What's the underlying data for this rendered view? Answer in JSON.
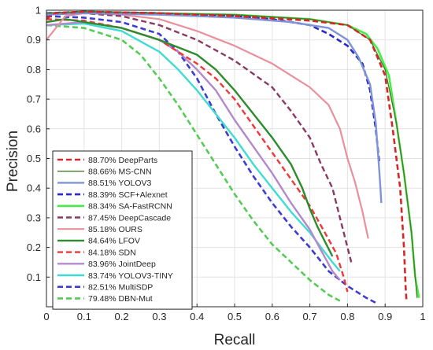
{
  "chart_data": {
    "type": "line",
    "xlabel": "Recall",
    "ylabel": "Precision",
    "xlim": [
      0,
      1
    ],
    "ylim": [
      0,
      1
    ],
    "xticks": [
      "0",
      "0.1",
      "0.2",
      "0.3",
      "0.4",
      "0.5",
      "0.6",
      "0.7",
      "0.8",
      "0.9",
      "1"
    ],
    "yticks": [
      "0.1",
      "0.2",
      "0.3",
      "0.4",
      "0.5",
      "0.6",
      "0.7",
      "0.8",
      "0.9",
      "1"
    ],
    "grid": true,
    "legend_position": "bottom-left",
    "series": [
      {
        "name": "88.70% DeepParts",
        "color": "#d62728",
        "dash": true,
        "width": 2.6,
        "points": [
          [
            0.0,
            0.97
          ],
          [
            0.02,
            0.99
          ],
          [
            0.1,
            0.995
          ],
          [
            0.3,
            0.99
          ],
          [
            0.5,
            0.98
          ],
          [
            0.7,
            0.965
          ],
          [
            0.8,
            0.95
          ],
          [
            0.86,
            0.9
          ],
          [
            0.9,
            0.78
          ],
          [
            0.92,
            0.6
          ],
          [
            0.94,
            0.4
          ],
          [
            0.95,
            0.2
          ],
          [
            0.955,
            0.05
          ],
          [
            0.957,
            0.02
          ]
        ]
      },
      {
        "name": "88.66% MS-CNN",
        "color": "#4a7a2a",
        "dash": false,
        "width": 1.4,
        "points": [
          [
            0.0,
            0.99
          ],
          [
            0.1,
            0.995
          ],
          [
            0.3,
            0.99
          ],
          [
            0.5,
            0.985
          ],
          [
            0.7,
            0.97
          ],
          [
            0.8,
            0.95
          ],
          [
            0.86,
            0.9
          ],
          [
            0.9,
            0.8
          ],
          [
            0.93,
            0.62
          ],
          [
            0.95,
            0.45
          ],
          [
            0.97,
            0.25
          ],
          [
            0.98,
            0.1
          ],
          [
            0.985,
            0.03
          ]
        ]
      },
      {
        "name": "88.51% YOLOV3",
        "color": "#7f94d8",
        "dash": false,
        "width": 2.4,
        "points": [
          [
            0.0,
            0.985
          ],
          [
            0.1,
            0.99
          ],
          [
            0.3,
            0.985
          ],
          [
            0.5,
            0.975
          ],
          [
            0.65,
            0.96
          ],
          [
            0.75,
            0.94
          ],
          [
            0.8,
            0.9
          ],
          [
            0.83,
            0.84
          ],
          [
            0.86,
            0.75
          ],
          [
            0.875,
            0.62
          ],
          [
            0.885,
            0.45
          ],
          [
            0.89,
            0.35
          ]
        ]
      },
      {
        "name": "88.39% SCF+Alexnet",
        "color": "#2a2ac8",
        "dash": true,
        "width": 2.6,
        "points": [
          [
            0.0,
            0.99
          ],
          [
            0.1,
            0.995
          ],
          [
            0.3,
            0.99
          ],
          [
            0.5,
            0.98
          ],
          [
            0.6,
            0.97
          ],
          [
            0.7,
            0.95
          ],
          [
            0.75,
            0.92
          ],
          [
            0.8,
            0.88
          ],
          [
            0.84,
            0.82
          ],
          [
            0.86,
            0.73
          ],
          [
            0.875,
            0.6
          ],
          [
            0.885,
            0.48
          ]
        ]
      },
      {
        "name": "88.34% SA-FastRCNN",
        "color": "#44ee44",
        "dash": false,
        "width": 2.6,
        "points": [
          [
            0.0,
            0.99
          ],
          [
            0.1,
            0.995
          ],
          [
            0.3,
            0.99
          ],
          [
            0.5,
            0.985
          ],
          [
            0.7,
            0.97
          ],
          [
            0.8,
            0.95
          ],
          [
            0.85,
            0.92
          ],
          [
            0.88,
            0.87
          ],
          [
            0.91,
            0.78
          ],
          [
            0.93,
            0.62
          ],
          [
            0.95,
            0.45
          ],
          [
            0.97,
            0.25
          ],
          [
            0.98,
            0.1
          ],
          [
            0.99,
            0.03
          ]
        ]
      },
      {
        "name": "87.45% DeepCascade",
        "color": "#8a3a62",
        "dash": true,
        "width": 2.4,
        "points": [
          [
            0.0,
            0.99
          ],
          [
            0.1,
            0.99
          ],
          [
            0.2,
            0.98
          ],
          [
            0.3,
            0.95
          ],
          [
            0.4,
            0.9
          ],
          [
            0.5,
            0.83
          ],
          [
            0.6,
            0.74
          ],
          [
            0.65,
            0.66
          ],
          [
            0.7,
            0.57
          ],
          [
            0.73,
            0.48
          ],
          [
            0.76,
            0.4
          ],
          [
            0.78,
            0.3
          ],
          [
            0.8,
            0.2
          ],
          [
            0.81,
            0.15
          ]
        ]
      },
      {
        "name": "85.18% OURS",
        "color": "#e8909c",
        "dash": false,
        "width": 2.2,
        "points": [
          [
            0.0,
            0.9
          ],
          [
            0.05,
            0.98
          ],
          [
            0.1,
            0.99
          ],
          [
            0.2,
            0.985
          ],
          [
            0.3,
            0.97
          ],
          [
            0.4,
            0.93
          ],
          [
            0.5,
            0.88
          ],
          [
            0.6,
            0.82
          ],
          [
            0.7,
            0.74
          ],
          [
            0.75,
            0.68
          ],
          [
            0.78,
            0.6
          ],
          [
            0.8,
            0.5
          ],
          [
            0.82,
            0.42
          ],
          [
            0.84,
            0.32
          ],
          [
            0.855,
            0.23
          ]
        ]
      },
      {
        "name": "84.64% LFOV",
        "color": "#2e8b2e",
        "dash": false,
        "width": 2.4,
        "points": [
          [
            0.0,
            0.96
          ],
          [
            0.05,
            0.97
          ],
          [
            0.1,
            0.96
          ],
          [
            0.2,
            0.94
          ],
          [
            0.3,
            0.9
          ],
          [
            0.4,
            0.85
          ],
          [
            0.45,
            0.8
          ],
          [
            0.5,
            0.73
          ],
          [
            0.55,
            0.65
          ],
          [
            0.6,
            0.57
          ],
          [
            0.65,
            0.48
          ],
          [
            0.68,
            0.4
          ],
          [
            0.7,
            0.33
          ],
          [
            0.72,
            0.27
          ],
          [
            0.74,
            0.22
          ],
          [
            0.76,
            0.17
          ]
        ]
      },
      {
        "name": "84.18% SDN",
        "color": "#f03838",
        "dash": true,
        "width": 2.4,
        "points": [
          [
            0.0,
            0.97
          ],
          [
            0.1,
            0.965
          ],
          [
            0.2,
            0.94
          ],
          [
            0.3,
            0.9
          ],
          [
            0.4,
            0.82
          ],
          [
            0.45,
            0.77
          ],
          [
            0.5,
            0.7
          ],
          [
            0.55,
            0.61
          ],
          [
            0.6,
            0.52
          ],
          [
            0.65,
            0.43
          ],
          [
            0.7,
            0.34
          ],
          [
            0.74,
            0.25
          ],
          [
            0.77,
            0.18
          ],
          [
            0.79,
            0.1
          ],
          [
            0.8,
            0.05
          ]
        ]
      },
      {
        "name": "83.96% JointDeep",
        "color": "#b488cc",
        "dash": false,
        "width": 2.4,
        "points": [
          [
            0.0,
            0.95
          ],
          [
            0.1,
            0.96
          ],
          [
            0.2,
            0.94
          ],
          [
            0.3,
            0.9
          ],
          [
            0.35,
            0.86
          ],
          [
            0.4,
            0.8
          ],
          [
            0.45,
            0.73
          ],
          [
            0.5,
            0.63
          ],
          [
            0.55,
            0.54
          ],
          [
            0.6,
            0.45
          ],
          [
            0.65,
            0.35
          ],
          [
            0.7,
            0.26
          ],
          [
            0.73,
            0.19
          ],
          [
            0.76,
            0.12
          ],
          [
            0.78,
            0.09
          ]
        ]
      },
      {
        "name": "83.74% YOLOV3-TINY",
        "color": "#40dcd4",
        "dash": false,
        "width": 2.4,
        "points": [
          [
            0.0,
            0.95
          ],
          [
            0.1,
            0.955
          ],
          [
            0.2,
            0.93
          ],
          [
            0.3,
            0.86
          ],
          [
            0.35,
            0.8
          ],
          [
            0.4,
            0.73
          ],
          [
            0.45,
            0.65
          ],
          [
            0.5,
            0.57
          ],
          [
            0.55,
            0.48
          ],
          [
            0.6,
            0.4
          ],
          [
            0.65,
            0.32
          ],
          [
            0.7,
            0.25
          ],
          [
            0.73,
            0.2
          ],
          [
            0.76,
            0.15
          ],
          [
            0.78,
            0.12
          ]
        ]
      },
      {
        "name": "82.51% MultiSDP",
        "color": "#3c3cd0",
        "dash": true,
        "width": 2.6,
        "points": [
          [
            0.0,
            0.98
          ],
          [
            0.1,
            0.975
          ],
          [
            0.2,
            0.96
          ],
          [
            0.3,
            0.92
          ],
          [
            0.35,
            0.86
          ],
          [
            0.4,
            0.77
          ],
          [
            0.45,
            0.65
          ],
          [
            0.5,
            0.54
          ],
          [
            0.55,
            0.44
          ],
          [
            0.6,
            0.35
          ],
          [
            0.65,
            0.27
          ],
          [
            0.7,
            0.2
          ],
          [
            0.75,
            0.12
          ],
          [
            0.8,
            0.07
          ],
          [
            0.85,
            0.03
          ],
          [
            0.88,
            0.01
          ]
        ]
      },
      {
        "name": "79.48% DBN-Mut",
        "color": "#55cc55",
        "dash": true,
        "width": 2.6,
        "points": [
          [
            0.0,
            0.95
          ],
          [
            0.1,
            0.94
          ],
          [
            0.2,
            0.9
          ],
          [
            0.25,
            0.85
          ],
          [
            0.3,
            0.77
          ],
          [
            0.35,
            0.68
          ],
          [
            0.4,
            0.58
          ],
          [
            0.45,
            0.48
          ],
          [
            0.5,
            0.38
          ],
          [
            0.55,
            0.29
          ],
          [
            0.6,
            0.21
          ],
          [
            0.65,
            0.15
          ],
          [
            0.7,
            0.09
          ],
          [
            0.75,
            0.04
          ],
          [
            0.78,
            0.02
          ]
        ]
      }
    ]
  }
}
